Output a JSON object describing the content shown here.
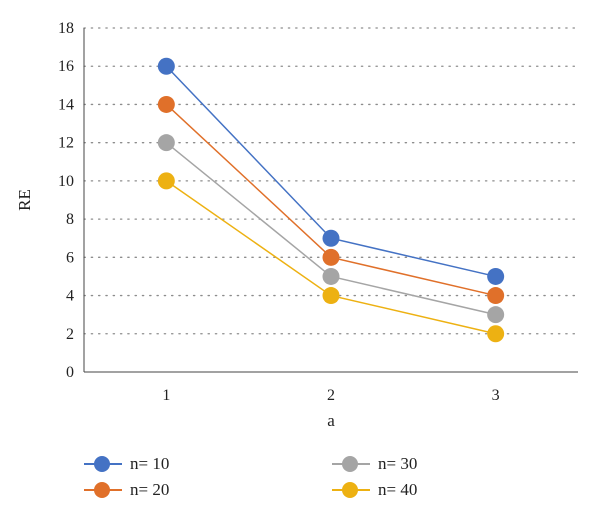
{
  "chart_data": {
    "type": "line",
    "x": [
      1,
      2,
      3
    ],
    "xlabel": "a",
    "ylabel": "RE",
    "ylim": [
      0,
      18
    ],
    "yticks": [
      0,
      2,
      4,
      6,
      8,
      10,
      12,
      14,
      16,
      18
    ],
    "xticks": [
      1,
      2,
      3
    ],
    "grid": "horizontal dotted",
    "legend_position": "bottom",
    "series": [
      {
        "name": "n= 10",
        "values": [
          16,
          7,
          5
        ],
        "color": "#4472C4"
      },
      {
        "name": "n= 20",
        "values": [
          14,
          6,
          4
        ],
        "color": "#E0702A"
      },
      {
        "name": "n= 30",
        "values": [
          12,
          5,
          3
        ],
        "color": "#A5A5A5"
      },
      {
        "name": "n= 40",
        "values": [
          10,
          4,
          2
        ],
        "color": "#EDB112"
      }
    ]
  }
}
